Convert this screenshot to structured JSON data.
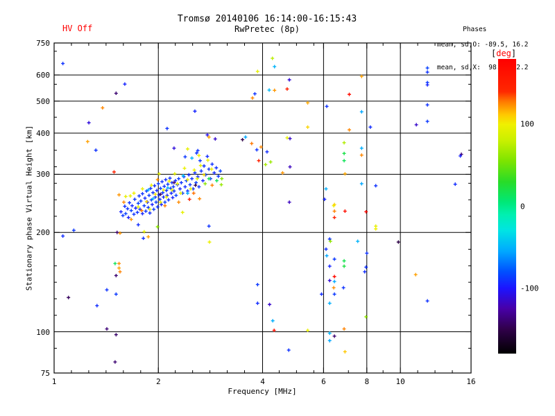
{
  "header": {
    "title_line1": "Tromsø 20140106 16:14:00-16:15:43",
    "title_line2": "RwPretec (8p)",
    "hv_status": "HV Off",
    "phases_title": "Phases",
    "phases_line_o": "mean, sd,O: -89.5, 16.2",
    "phases_line_x": "mean, sd,X:  98.6, 22.2"
  },
  "colors": {
    "hv_status": "#ff0000",
    "colorbar_unit": "#ff0000",
    "text": "#000000",
    "frame": "#000000"
  },
  "chart_data": {
    "type": "scatter",
    "title": "Tromsø 20140106 16:14:00-16:15:43",
    "subtitle": "RwPretec (8p)",
    "xlabel": "Frequency [MHz]",
    "ylabel": "Stationary phase Virtual Height [km]",
    "x_scale": "log",
    "y_scale": "log",
    "xlim": [
      1,
      16
    ],
    "ylim": [
      75,
      750
    ],
    "grid": true,
    "x_ticks": [
      {
        "v": 1,
        "label": "1"
      },
      {
        "v": 2,
        "label": "2"
      },
      {
        "v": 4,
        "label": "4"
      },
      {
        "v": 6,
        "label": "6"
      },
      {
        "v": 8,
        "label": "8"
      },
      {
        "v": 10,
        "label": "10"
      },
      {
        "v": 16,
        "label": "16"
      }
    ],
    "y_ticks": [
      {
        "v": 75,
        "label": "75"
      },
      {
        "v": 100,
        "label": "100"
      },
      {
        "v": 200,
        "label": "200"
      },
      {
        "v": 300,
        "label": "300"
      },
      {
        "v": 400,
        "label": "400"
      },
      {
        "v": 500,
        "label": "500"
      },
      {
        "v": 600,
        "label": "600"
      },
      {
        "v": 750,
        "label": "750"
      }
    ],
    "grid_x": [
      2,
      4,
      6,
      8,
      10
    ],
    "grid_y": [
      100,
      200,
      300,
      400,
      500,
      600
    ],
    "colorbar": {
      "bracket_open": "[",
      "unit": "deg",
      "bracket_close": "]",
      "range": [
        -180,
        180
      ],
      "tick_labels": [
        {
          "v": 100,
          "label": "100"
        },
        {
          "v": 0,
          "label": "0"
        },
        {
          "v": -100,
          "label": "-100"
        }
      ],
      "stops": [
        [
          -180,
          "#000000"
        ],
        [
          -150,
          "#30004a"
        ],
        [
          -125,
          "#4800a8"
        ],
        [
          -100,
          "#1c14ff"
        ],
        [
          -80,
          "#0050ff"
        ],
        [
          -55,
          "#00a8ff"
        ],
        [
          -30,
          "#00e4e4"
        ],
        [
          -10,
          "#00f0b0"
        ],
        [
          5,
          "#00e878"
        ],
        [
          30,
          "#28dc28"
        ],
        [
          55,
          "#7ce400"
        ],
        [
          80,
          "#c8f000"
        ],
        [
          100,
          "#f0f000"
        ],
        [
          112,
          "#ffc800"
        ],
        [
          128,
          "#ff7800"
        ],
        [
          140,
          "#ff2800"
        ],
        [
          180,
          "#ff0000"
        ]
      ]
    },
    "point_format": [
      "frequency_MHz",
      "virtual_height_km",
      "phase_deg"
    ],
    "points": [
      [
        1.06,
        650,
        -90
      ],
      [
        1.6,
        563,
        -95
      ],
      [
        1.51,
        528,
        -140
      ],
      [
        1.38,
        477,
        125
      ],
      [
        1.26,
        430,
        -110
      ],
      [
        1.25,
        377,
        120
      ],
      [
        1.32,
        355,
        -90
      ],
      [
        3.87,
        615,
        95
      ],
      [
        3.8,
        526,
        -90
      ],
      [
        3.74,
        511,
        125
      ],
      [
        2.55,
        466,
        -95
      ],
      [
        2.12,
        413,
        -90
      ],
      [
        2.77,
        395,
        -105
      ],
      [
        2.8,
        389,
        120
      ],
      [
        2.92,
        384,
        -115
      ],
      [
        3.57,
        389,
        -55
      ],
      [
        3.5,
        382,
        -150
      ],
      [
        2.22,
        360,
        -110
      ],
      [
        2.43,
        358,
        95
      ],
      [
        2.6,
        354,
        -90
      ],
      [
        2.62,
        342,
        100
      ],
      [
        2.39,
        339,
        -88
      ],
      [
        2.5,
        336,
        -50
      ],
      [
        3.96,
        363,
        125
      ],
      [
        4.12,
        351,
        -92
      ],
      [
        3.9,
        330,
        148
      ],
      [
        4.22,
        327,
        65
      ],
      [
        4.27,
        674,
        75
      ],
      [
        4.33,
        636,
        -50
      ],
      [
        4.78,
        580,
        -112
      ],
      [
        4.18,
        540,
        -48
      ],
      [
        4.33,
        539,
        122
      ],
      [
        4.71,
        544,
        150
      ],
      [
        7.12,
        524,
        168
      ],
      [
        5.4,
        494,
        118
      ],
      [
        6.13,
        482,
        -90
      ],
      [
        5.4,
        417,
        108
      ],
      [
        7.12,
        409,
        125
      ],
      [
        3.72,
        372,
        128
      ],
      [
        4.71,
        387,
        95
      ],
      [
        4.8,
        385,
        -115
      ],
      [
        3.85,
        356,
        -90
      ],
      [
        4.08,
        321,
        70
      ],
      [
        4.8,
        316,
        -118
      ],
      [
        4.57,
        303,
        122
      ],
      [
        6.88,
        374,
        72
      ],
      [
        6.88,
        347,
        20
      ],
      [
        6.88,
        330,
        15
      ],
      [
        6.92,
        301,
        118
      ],
      [
        6.1,
        271,
        -52
      ],
      [
        6.04,
        252,
        -95
      ],
      [
        4.78,
        247,
        -118
      ],
      [
        6.42,
        241,
        98
      ],
      [
        7.73,
        594,
        120
      ],
      [
        11.97,
        630,
        -85
      ],
      [
        11.97,
        612,
        -90
      ],
      [
        11.97,
        569,
        -88
      ],
      [
        11.97,
        560,
        -95
      ],
      [
        7.73,
        464,
        -55
      ],
      [
        11.97,
        487,
        -90
      ],
      [
        11.12,
        424,
        -115
      ],
      [
        11.97,
        434,
        -88
      ],
      [
        8.19,
        417,
        -92
      ],
      [
        7.73,
        360,
        -52
      ],
      [
        7.73,
        343,
        125
      ],
      [
        15.0,
        345,
        -138
      ],
      [
        14.9,
        341,
        -95
      ],
      [
        7.73,
        281,
        -55
      ],
      [
        8.49,
        277,
        -90
      ],
      [
        14.4,
        280,
        -92
      ],
      [
        6.45,
        243,
        108
      ],
      [
        6.45,
        232,
        126
      ],
      [
        6.92,
        232,
        165
      ],
      [
        7.96,
        231,
        170
      ],
      [
        6.45,
        222,
        148
      ],
      [
        8.49,
        209,
        95
      ],
      [
        8.49,
        205,
        100
      ],
      [
        6.25,
        191,
        -90
      ],
      [
        6.28,
        188,
        62
      ],
      [
        7.53,
        188,
        -50
      ],
      [
        9.87,
        187,
        -152
      ],
      [
        6.1,
        178,
        -92
      ],
      [
        6.13,
        170,
        -55
      ],
      [
        6.45,
        166,
        -88
      ],
      [
        8.0,
        173,
        -90
      ],
      [
        6.88,
        164,
        18
      ],
      [
        6.88,
        158,
        22
      ],
      [
        6.25,
        158,
        -95
      ],
      [
        7.96,
        157,
        -90
      ],
      [
        7.89,
        152,
        -92
      ],
      [
        6.45,
        147,
        170
      ],
      [
        6.25,
        143,
        -112
      ],
      [
        6.45,
        142,
        -55
      ],
      [
        11.07,
        149,
        120
      ],
      [
        6.42,
        136,
        124
      ],
      [
        6.85,
        136,
        -90
      ],
      [
        5.92,
        130,
        -92
      ],
      [
        6.45,
        130,
        -88
      ],
      [
        11.97,
        124,
        -90
      ],
      [
        6.25,
        122,
        -52
      ],
      [
        7.96,
        111,
        62
      ],
      [
        6.88,
        102,
        126
      ],
      [
        6.25,
        99,
        -50
      ],
      [
        6.45,
        97,
        -140
      ],
      [
        6.25,
        94,
        -55
      ],
      [
        6.92,
        87,
        112
      ],
      [
        2.35,
        230,
        95
      ],
      [
        2.8,
        209,
        -90
      ],
      [
        2.81,
        187,
        98
      ],
      [
        3.87,
        139,
        -88
      ],
      [
        3.87,
        122,
        -92
      ],
      [
        4.19,
        121,
        -115
      ],
      [
        4.28,
        108,
        -52
      ],
      [
        4.32,
        101,
        165
      ],
      [
        5.4,
        101,
        96
      ],
      [
        4.76,
        88,
        -90
      ],
      [
        1.14,
        203,
        -88
      ],
      [
        1.06,
        195,
        -92
      ],
      [
        1.52,
        200,
        -142
      ],
      [
        1.55,
        199,
        122
      ],
      [
        1.81,
        192,
        -90
      ],
      [
        1.87,
        194,
        120
      ],
      [
        1.75,
        211,
        -92
      ],
      [
        1.82,
        201,
        96
      ],
      [
        1.99,
        208,
        60
      ],
      [
        1.5,
        161,
        15
      ],
      [
        1.54,
        161,
        124
      ],
      [
        1.54,
        156,
        120
      ],
      [
        1.55,
        152,
        126
      ],
      [
        1.51,
        148,
        -140
      ],
      [
        1.42,
        134,
        -90
      ],
      [
        1.51,
        130,
        -88
      ],
      [
        1.1,
        127,
        -145
      ],
      [
        1.33,
        120,
        -92
      ],
      [
        1.42,
        102,
        -138
      ],
      [
        1.51,
        98,
        -142
      ],
      [
        1.5,
        81,
        -140
      ],
      [
        1.54,
        260,
        122
      ],
      [
        1.66,
        258,
        96
      ],
      [
        1.56,
        231,
        -95
      ],
      [
        1.58,
        225,
        -88
      ],
      [
        1.6,
        240,
        -92
      ],
      [
        1.61,
        228,
        -85
      ],
      [
        1.63,
        236,
        -90
      ],
      [
        1.64,
        222,
        -97
      ],
      [
        1.65,
        246,
        -90
      ],
      [
        1.67,
        233,
        -86
      ],
      [
        1.68,
        241,
        -93
      ],
      [
        1.7,
        227,
        -90
      ],
      [
        1.71,
        252,
        -88
      ],
      [
        1.72,
        237,
        -95
      ],
      [
        1.74,
        230,
        -90
      ],
      [
        1.75,
        245,
        -84
      ],
      [
        1.76,
        258,
        -90
      ],
      [
        1.77,
        235,
        -92
      ],
      [
        1.78,
        249,
        -87
      ],
      [
        1.8,
        228,
        -95
      ],
      [
        1.8,
        262,
        -90
      ],
      [
        1.82,
        241,
        -88
      ],
      [
        1.83,
        254,
        -93
      ],
      [
        1.84,
        232,
        -90
      ],
      [
        1.85,
        267,
        -86
      ],
      [
        1.86,
        247,
        -95
      ],
      [
        1.87,
        238,
        -90
      ],
      [
        1.88,
        259,
        -88
      ],
      [
        1.89,
        229,
        -92
      ],
      [
        1.9,
        272,
        -90
      ],
      [
        1.91,
        251,
        -85
      ],
      [
        1.92,
        243,
        -96
      ],
      [
        1.93,
        264,
        -90
      ],
      [
        1.94,
        235,
        -88
      ],
      [
        1.95,
        277,
        -92
      ],
      [
        1.96,
        256,
        -90
      ],
      [
        1.97,
        247,
        -87
      ],
      [
        1.98,
        268,
        -94
      ],
      [
        1.99,
        239,
        -90
      ],
      [
        2.0,
        281,
        -88
      ],
      [
        2.01,
        260,
        -92
      ],
      [
        2.02,
        252,
        -90
      ],
      [
        2.03,
        272,
        -85
      ],
      [
        2.04,
        243,
        -95
      ],
      [
        2.05,
        285,
        -90
      ],
      [
        2.06,
        264,
        -88
      ],
      [
        2.07,
        256,
        -93
      ],
      [
        2.08,
        276,
        -90
      ],
      [
        2.09,
        247,
        -86
      ],
      [
        2.1,
        289,
        -92
      ],
      [
        2.11,
        268,
        -90
      ],
      [
        2.12,
        259,
        -95
      ],
      [
        2.13,
        280,
        -88
      ],
      [
        2.14,
        251,
        -90
      ],
      [
        2.16,
        292,
        -90
      ],
      [
        2.17,
        272,
        -87
      ],
      [
        2.18,
        263,
        -93
      ],
      [
        2.19,
        283,
        -90
      ],
      [
        2.2,
        255,
        -95
      ],
      [
        2.21,
        275,
        -88
      ],
      [
        2.22,
        267,
        -90
      ],
      [
        2.24,
        287,
        -92
      ],
      [
        2.25,
        259,
        -85
      ],
      [
        2.27,
        279,
        -90
      ],
      [
        2.29,
        291,
        -88
      ],
      [
        2.31,
        271,
        -94
      ],
      [
        2.33,
        283,
        -90
      ],
      [
        2.35,
        263,
        -87
      ],
      [
        2.37,
        295,
        -90
      ],
      [
        2.39,
        275,
        -92
      ],
      [
        2.41,
        287,
        -85
      ],
      [
        2.43,
        267,
        -90
      ],
      [
        2.45,
        299,
        -95
      ],
      [
        2.47,
        279,
        -88
      ],
      [
        2.5,
        291,
        -90
      ],
      [
        2.52,
        271,
        -93
      ],
      [
        2.55,
        303,
        -90
      ],
      [
        2.57,
        283,
        -86
      ],
      [
        2.58,
        348,
        -90
      ],
      [
        2.6,
        295,
        -92
      ],
      [
        2.62,
        275,
        -90
      ],
      [
        2.64,
        330,
        -88
      ],
      [
        2.66,
        307,
        -90
      ],
      [
        2.69,
        287,
        -95
      ],
      [
        2.71,
        318,
        -90
      ],
      [
        2.74,
        299,
        -87
      ],
      [
        2.77,
        340,
        -92
      ],
      [
        2.8,
        311,
        -90
      ],
      [
        2.83,
        291,
        -88
      ],
      [
        2.86,
        322,
        -90
      ],
      [
        2.9,
        303,
        -93
      ],
      [
        2.94,
        314,
        -90
      ],
      [
        2.98,
        296,
        -88
      ],
      [
        3.02,
        307,
        -85
      ],
      [
        1.61,
        257,
        95
      ],
      [
        1.7,
        263,
        100
      ],
      [
        1.75,
        239,
        94
      ],
      [
        1.8,
        271,
        97
      ],
      [
        1.85,
        248,
        108
      ],
      [
        1.89,
        235,
        95
      ],
      [
        1.91,
        278,
        99
      ],
      [
        1.96,
        261,
        104
      ],
      [
        2.01,
        301,
        95
      ],
      [
        2.03,
        247,
        93
      ],
      [
        2.07,
        269,
        98
      ],
      [
        2.11,
        256,
        95
      ],
      [
        2.15,
        286,
        101
      ],
      [
        2.19,
        269,
        96
      ],
      [
        2.23,
        301,
        93
      ],
      [
        2.27,
        281,
        98
      ],
      [
        2.32,
        263,
        95
      ],
      [
        2.38,
        313,
        97
      ],
      [
        2.43,
        289,
        101
      ],
      [
        2.48,
        271,
        95
      ],
      [
        2.54,
        309,
        98
      ],
      [
        2.59,
        291,
        93
      ],
      [
        2.65,
        319,
        95
      ],
      [
        2.71,
        299,
        106
      ],
      [
        2.78,
        331,
        96
      ],
      [
        2.85,
        311,
        99
      ],
      [
        1.59,
        247,
        125
      ],
      [
        1.67,
        219,
        122
      ],
      [
        1.79,
        233,
        128
      ],
      [
        1.99,
        289,
        123
      ],
      [
        2.09,
        241,
        127
      ],
      [
        2.29,
        247,
        124
      ],
      [
        2.53,
        263,
        129
      ],
      [
        2.63,
        253,
        125
      ],
      [
        2.86,
        278,
        126
      ],
      [
        1.87,
        269,
        -55
      ],
      [
        1.93,
        253,
        -50
      ],
      [
        2.13,
        273,
        -52
      ],
      [
        2.36,
        297,
        -47
      ],
      [
        2.43,
        263,
        -55
      ],
      [
        2.03,
        261,
        -144
      ],
      [
        2.22,
        283,
        -139
      ],
      [
        2.56,
        278,
        -150
      ],
      [
        2.73,
        281,
        60
      ],
      [
        2.8,
        291,
        18
      ],
      [
        3.04,
        279,
        64
      ],
      [
        3.05,
        291,
        58
      ],
      [
        2.95,
        287,
        15
      ],
      [
        1.49,
        305,
        146
      ],
      [
        2.46,
        252,
        150
      ]
    ]
  }
}
